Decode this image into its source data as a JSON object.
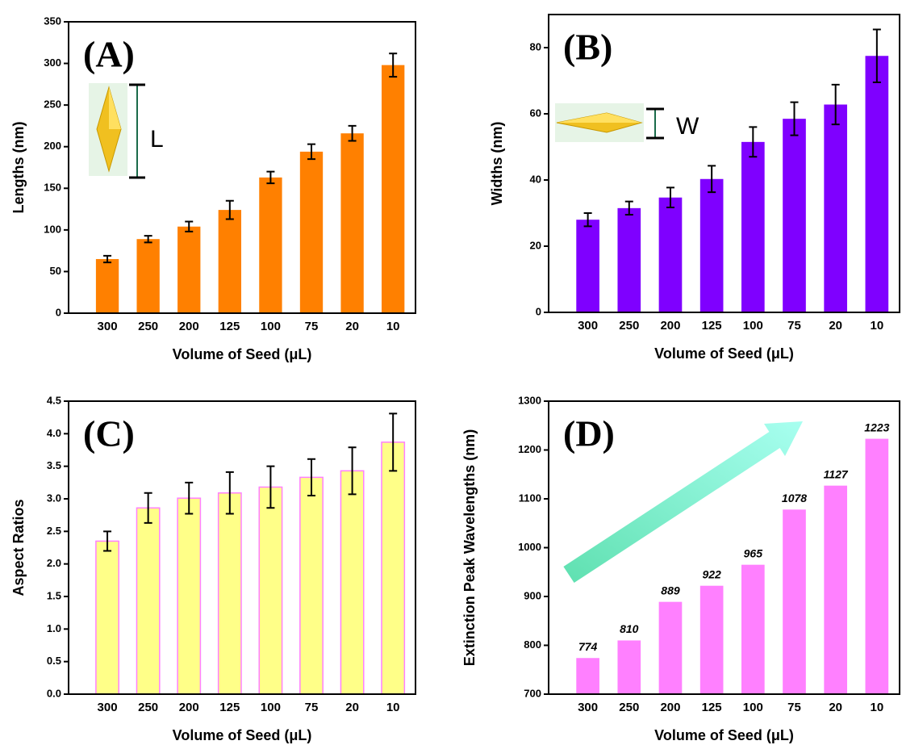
{
  "chart_data": [
    {
      "type": "bar",
      "label": "(A)",
      "annotation": "L",
      "y_label": "Lengths (nm)",
      "x_label": "Volume of Seed (μL)",
      "categories": [
        "300",
        "250",
        "200",
        "125",
        "100",
        "75",
        "20",
        "10"
      ],
      "values": [
        65,
        89,
        104,
        124,
        163,
        194,
        216,
        298
      ],
      "errors": [
        4,
        4,
        6,
        11,
        7,
        9,
        9,
        14
      ],
      "color": "#ff8000",
      "ylim": [
        0,
        350
      ],
      "yticks": [
        0,
        50,
        100,
        150,
        200,
        250,
        300,
        350
      ]
    },
    {
      "type": "bar",
      "label": "(B)",
      "annotation": "W",
      "y_label": "Widths (nm)",
      "x_label": "Volume of Seed (μL)",
      "categories": [
        "300",
        "250",
        "200",
        "125",
        "100",
        "75",
        "20",
        "10"
      ],
      "values": [
        28,
        31.5,
        34.7,
        40.3,
        51.5,
        58.5,
        62.8,
        77.5
      ],
      "errors": [
        2,
        2,
        3,
        4,
        4.5,
        5,
        6,
        8
      ],
      "color": "#7f00ff",
      "ylim": [
        0,
        90
      ],
      "yticks": [
        0,
        20,
        40,
        60,
        80
      ]
    },
    {
      "type": "bar",
      "label": "(C)",
      "y_label": "Aspect Ratios",
      "x_label": "Volume of Seed (μL)",
      "categories": [
        "300",
        "250",
        "200",
        "125",
        "100",
        "75",
        "20",
        "10"
      ],
      "values": [
        2.35,
        2.86,
        3.01,
        3.09,
        3.18,
        3.33,
        3.43,
        3.87
      ],
      "errors": [
        0.15,
        0.23,
        0.24,
        0.32,
        0.32,
        0.28,
        0.36,
        0.44
      ],
      "color": "#ffff88",
      "edgecolor": "#ff80ff",
      "ylim": [
        0,
        4.5
      ],
      "yticks": [
        {
          "value": 0,
          "label": "0.0"
        },
        0.5,
        {
          "value": 1,
          "label": "1.0"
        },
        1.5,
        {
          "value": 2,
          "label": "2.0"
        },
        2.5,
        {
          "value": 3,
          "label": "3.0"
        },
        3.5,
        {
          "value": 4,
          "label": "4.0"
        },
        4.5
      ]
    },
    {
      "type": "bar",
      "label": "(D)",
      "y_label": "Extinction Peak Wavelengths (nm)",
      "x_label": "Volume of Seed (μL)",
      "categories": [
        "300",
        "250",
        "200",
        "125",
        "100",
        "75",
        "20",
        "10"
      ],
      "values": [
        774,
        810,
        889,
        922,
        965,
        1078,
        1127,
        1223
      ],
      "show_value_labels": true,
      "color": "#ff80ff",
      "ylim": [
        700,
        1300
      ],
      "yticks": [
        700,
        800,
        900,
        1000,
        1100,
        1200,
        1300
      ]
    }
  ]
}
